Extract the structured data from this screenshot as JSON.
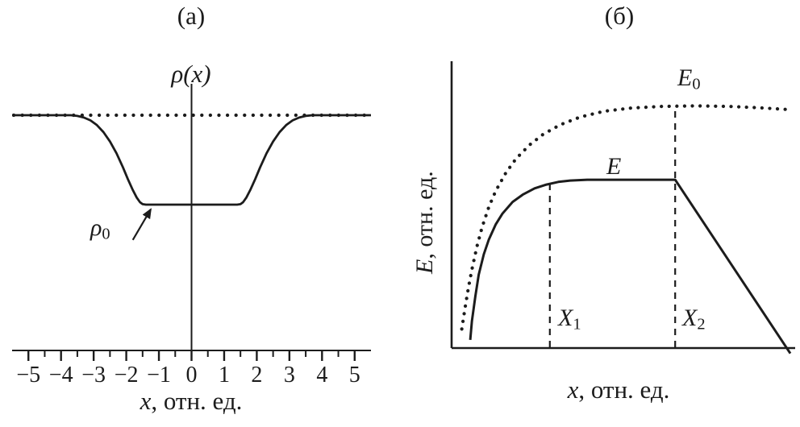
{
  "figure": {
    "background": "#ffffff",
    "ink": "#1c1c1c",
    "panel_titles": [
      "(а)",
      "(б)"
    ]
  },
  "chart_data": [
    {
      "id": "a",
      "type": "line",
      "title": "(а)",
      "xlabel": "x, отн. ед.",
      "xlabel_parts": {
        "var": "x",
        "units": ", отн. ед."
      },
      "ylabel": "ρ(x)",
      "xlim": [
        -5.5,
        5.5
      ],
      "ylim": [
        0,
        1.18
      ],
      "grid": false,
      "legend": false,
      "x_ticks": [
        -5,
        -4,
        -3,
        -2,
        -1,
        0,
        1,
        2,
        3,
        4,
        5
      ],
      "x_tick_labels": [
        "−5",
        "−4",
        "−3",
        "−2",
        "−1",
        "0",
        "1",
        "2",
        "3",
        "4",
        "5"
      ],
      "series": [
        {
          "name": "unperturbed-density-dotted",
          "style": "dots",
          "level": 1.0,
          "x_start": -5.45,
          "x_end": 5.45
        },
        {
          "name": "perturbed-density-solid",
          "style": "solid",
          "points": [
            [
              -5.5,
              1.0
            ],
            [
              -3.7,
              1.0
            ],
            [
              -3.5,
              0.997
            ],
            [
              -3.3,
              0.99
            ],
            [
              -3.1,
              0.978
            ],
            [
              -2.9,
              0.958
            ],
            [
              -2.7,
              0.928
            ],
            [
              -2.5,
              0.888
            ],
            [
              -2.3,
              0.838
            ],
            [
              -2.1,
              0.778
            ],
            [
              -1.95,
              0.728
            ],
            [
              -1.8,
              0.682
            ],
            [
              -1.68,
              0.65
            ],
            [
              -1.58,
              0.63
            ],
            [
              -1.5,
              0.622
            ],
            [
              -1.4,
              0.62
            ],
            [
              1.4,
              0.62
            ],
            [
              1.5,
              0.622
            ],
            [
              1.58,
              0.63
            ],
            [
              1.68,
              0.65
            ],
            [
              1.8,
              0.682
            ],
            [
              1.95,
              0.728
            ],
            [
              2.1,
              0.778
            ],
            [
              2.3,
              0.838
            ],
            [
              2.5,
              0.888
            ],
            [
              2.7,
              0.928
            ],
            [
              2.9,
              0.958
            ],
            [
              3.1,
              0.978
            ],
            [
              3.3,
              0.99
            ],
            [
              3.5,
              0.997
            ],
            [
              3.7,
              1.0
            ],
            [
              5.5,
              1.0
            ]
          ]
        }
      ],
      "annotation": {
        "label_base": "ρ",
        "label_sub": "0",
        "value": 0.62,
        "arrow_from": [
          -1.8,
          0.47
        ],
        "arrow_to": [
          -1.25,
          0.6
        ]
      }
    },
    {
      "id": "b",
      "type": "line",
      "title": "(б)",
      "xlabel": "x, отн. ед.",
      "xlabel_parts": {
        "var": "x",
        "units": ", отн. ед."
      },
      "ylabel": "E, отн. ед.",
      "ylabel_parts": {
        "var": "E",
        "units": ", отн. ед."
      },
      "xlim": [
        0,
        1
      ],
      "ylim": [
        0,
        1
      ],
      "grid": false,
      "legend": false,
      "series": [
        {
          "name": "E0-unscreened-dotted",
          "style": "dots",
          "points": [
            [
              0.03,
              0.07
            ],
            [
              0.04,
              0.15
            ],
            [
              0.05,
              0.225
            ],
            [
              0.06,
              0.29
            ],
            [
              0.075,
              0.375
            ],
            [
              0.09,
              0.445
            ],
            [
              0.11,
              0.52
            ],
            [
              0.13,
              0.578
            ],
            [
              0.16,
              0.645
            ],
            [
              0.19,
              0.697
            ],
            [
              0.23,
              0.748
            ],
            [
              0.27,
              0.787
            ],
            [
              0.32,
              0.822
            ],
            [
              0.38,
              0.851
            ],
            [
              0.45,
              0.872
            ],
            [
              0.53,
              0.884
            ],
            [
              0.62,
              0.89
            ],
            [
              0.72,
              0.892
            ],
            [
              0.82,
              0.89
            ],
            [
              0.91,
              0.885
            ],
            [
              1.0,
              0.878
            ]
          ]
        },
        {
          "name": "E-screened-solid",
          "style": "solid",
          "points": [
            [
              0.055,
              0.03
            ],
            [
              0.06,
              0.1
            ],
            [
              0.07,
              0.19
            ],
            [
              0.08,
              0.27
            ],
            [
              0.095,
              0.345
            ],
            [
              0.11,
              0.4
            ],
            [
              0.13,
              0.455
            ],
            [
              0.15,
              0.495
            ],
            [
              0.18,
              0.538
            ],
            [
              0.21,
              0.565
            ],
            [
              0.245,
              0.588
            ],
            [
              0.28,
              0.602
            ],
            [
              0.315,
              0.612
            ],
            [
              0.35,
              0.617
            ],
            [
              0.4,
              0.62
            ],
            [
              0.66,
              0.62
            ],
            [
              1.0,
              -0.02
            ]
          ]
        },
        {
          "name": "X1",
          "style": "dashed-vertical",
          "x": 0.29,
          "y_top": 0.62
        },
        {
          "name": "X2",
          "style": "dashed-vertical",
          "x": 0.66,
          "y_top": 0.885
        }
      ],
      "labels": {
        "E0": {
          "base": "E",
          "sub": "0"
        },
        "E": {
          "base": "E",
          "sub": ""
        },
        "X1": {
          "base": "X",
          "sub": "1"
        },
        "X2": {
          "base": "X",
          "sub": "2"
        }
      }
    }
  ]
}
